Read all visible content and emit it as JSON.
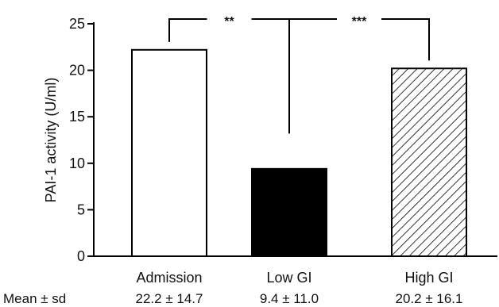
{
  "chart_data": {
    "type": "bar",
    "categories": [
      "Admission",
      "Low GI",
      "High GI"
    ],
    "values": [
      22.2,
      9.4,
      20.2
    ],
    "ylabel": "PAI-1 activity (U/ml)",
    "xlabel": "",
    "ylim": [
      0,
      25
    ],
    "yticks": [
      0,
      5,
      10,
      15,
      20,
      25
    ],
    "grid": false,
    "bar_fills": [
      "open",
      "solid",
      "hatched"
    ],
    "bar_colors": [
      "#ffffff",
      "#000000",
      "hatch"
    ],
    "summary_row_label": "Mean ± sd",
    "summary_values": [
      "22.2 ± 14.7",
      "9.4 ± 11.0",
      "20.2 ± 16.1"
    ],
    "significance": [
      {
        "from": 0,
        "to": 1,
        "label": "**"
      },
      {
        "from": 1,
        "to": 2,
        "label": "***"
      }
    ]
  }
}
